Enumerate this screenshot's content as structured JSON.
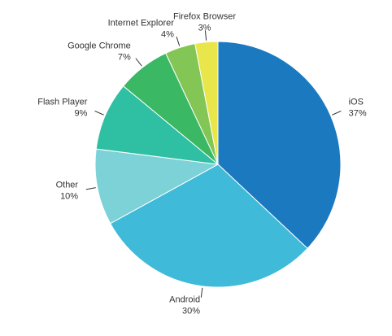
{
  "chart_data": {
    "type": "pie",
    "categories": [
      "iOS",
      "Android",
      "Other",
      "Flash Player",
      "Google Chrome",
      "Internet Explorer",
      "Firefox Browser"
    ],
    "values": [
      37,
      30,
      10,
      9,
      7,
      4,
      3
    ],
    "value_labels": [
      "37%",
      "30%",
      "10%",
      "9%",
      "7%",
      "4%",
      "3%"
    ],
    "colors": [
      "#1b79c0",
      "#3fbad8",
      "#7cd2d6",
      "#2fbfa2",
      "#3bb864",
      "#84c656",
      "#e8e64b"
    ]
  }
}
